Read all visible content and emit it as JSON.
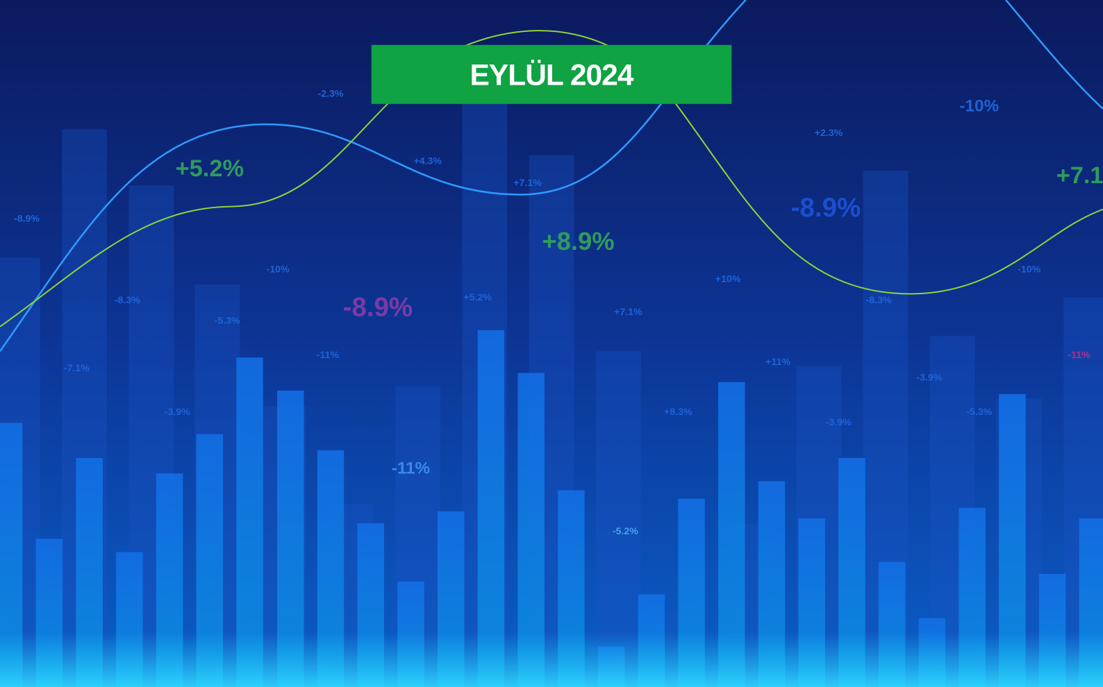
{
  "banner": {
    "title": "EYLÜL 2024"
  },
  "labels": [
    "-8.9%",
    "+5.2%",
    "-2.3%",
    "+4.3%",
    "+7.1%",
    "-10%",
    "+2.3%",
    "+7.1",
    "-8.9%",
    "+8.9%",
    "-10%",
    "-8.3%",
    "-8.9%",
    "+5.2%",
    "-5.3%",
    "+10%",
    "-10%",
    "-8.3%",
    "+7.1%",
    "-7.1%",
    "-11%",
    "+11%",
    "-11%",
    "-3.9%",
    "-11%",
    "-3.9%",
    "+8.3%",
    "-3.9%",
    "-5.3%",
    "-5.2%"
  ]
}
